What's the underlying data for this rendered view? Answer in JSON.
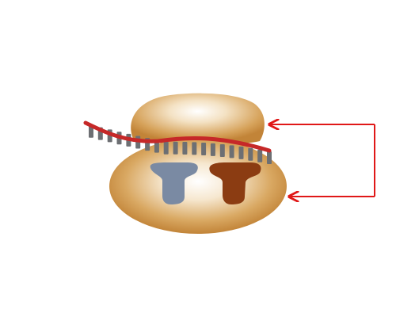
{
  "diagram": {
    "components": [
      {
        "name": "ribosome-small-subunit",
        "color": "#c58a3f"
      },
      {
        "name": "ribosome-large-subunit",
        "color": "#c58a3f"
      },
      {
        "name": "mrna-strand",
        "color": "#c62828"
      },
      {
        "name": "mrna-bases",
        "color": "#6d6f73",
        "count": 20
      },
      {
        "name": "trna-slot-left",
        "color": "#7a8aa3"
      },
      {
        "name": "trna-slot-right",
        "color": "#8b3c12"
      },
      {
        "name": "feedback-arrow",
        "color": "#e01818"
      }
    ]
  }
}
